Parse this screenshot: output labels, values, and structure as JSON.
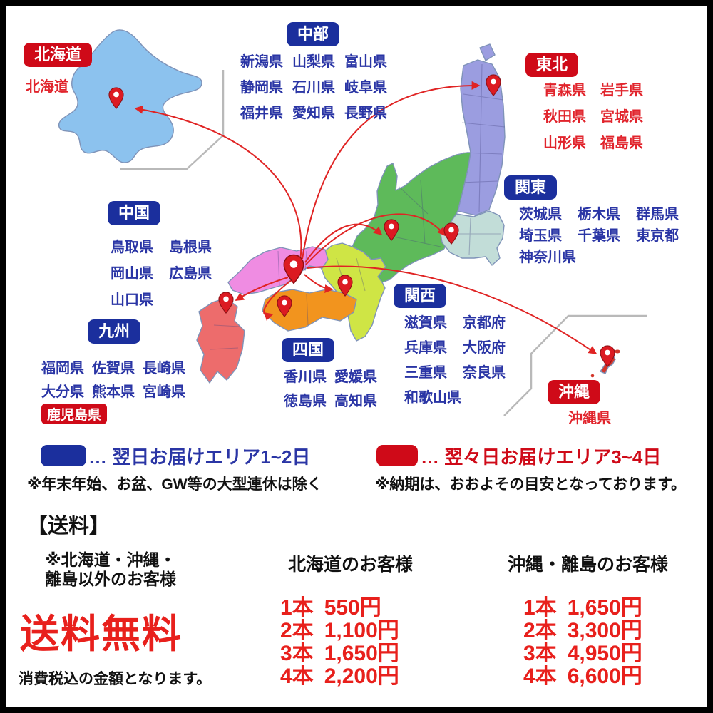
{
  "colors": {
    "frame": "#000000",
    "ink": "#111111",
    "badge-blue": "#1b2f9d",
    "badge-red": "#cf0a18",
    "text-blue": "#2a35a5",
    "text-red": "#e1242c",
    "price-red": "#e8201c",
    "arrow-red": "#e02424",
    "pin-red": "#dc1a22",
    "inset-line": "#b9b9b9",
    "map": {
      "hokkaido": "#8cc2ee",
      "tohoku": "#9b9de0",
      "chubu": "#5eba5a",
      "kanto": "#c2ddd8",
      "kansai": "#cfe545",
      "chugoku": "#ef8ce2",
      "shikoku": "#f2941e",
      "kyushu": "#ed6c6c",
      "okinawa": "#d3362a",
      "stroke": "#7f93b8"
    }
  },
  "regions": {
    "hokkaido": {
      "label": "北海道",
      "prefs": [
        [
          "北海道"
        ]
      ]
    },
    "tohoku": {
      "label": "東北",
      "prefs": [
        [
          "青森県",
          "岩手県"
        ],
        [
          "秋田県",
          "宮城県"
        ],
        [
          "山形県",
          "福島県"
        ]
      ]
    },
    "chubu": {
      "label": "中部",
      "prefs": [
        [
          "新潟県",
          "山梨県",
          "富山県"
        ],
        [
          "静岡県",
          "石川県",
          "岐阜県"
        ],
        [
          "福井県",
          "愛知県",
          "長野県"
        ]
      ]
    },
    "kanto": {
      "label": "関東",
      "prefs": [
        [
          "茨城県",
          "栃木県",
          "群馬県"
        ],
        [
          "埼玉県",
          "千葉県",
          "東京都"
        ],
        [
          "神奈川県"
        ]
      ]
    },
    "chugoku": {
      "label": "中国",
      "prefs": [
        [
          "鳥取県",
          "島根県"
        ],
        [
          "岡山県",
          "広島県"
        ],
        [
          "山口県"
        ]
      ]
    },
    "kansai": {
      "label": "関西",
      "prefs": [
        [
          "滋賀県",
          "京都府"
        ],
        [
          "兵庫県",
          "大阪府"
        ],
        [
          "三重県",
          "奈良県"
        ],
        [
          "和歌山県"
        ]
      ]
    },
    "kyushu": {
      "label": "九州",
      "prefs": [
        [
          "福岡県",
          "佐賀県",
          "長崎県"
        ],
        [
          "大分県",
          "熊本県",
          "宮崎県"
        ],
        [
          {
            "text": "鹿児島県",
            "badge": true
          }
        ]
      ]
    },
    "shikoku": {
      "label": "四国",
      "prefs": [
        [
          "香川県",
          "愛媛県"
        ],
        [
          "徳島県",
          "高知県"
        ]
      ]
    },
    "okinawa": {
      "label": "沖縄",
      "prefs": [
        [
          "沖縄県"
        ]
      ]
    }
  },
  "legend": {
    "blue": {
      "label": "… 翌日お届けエリア1~2日",
      "note": "※年末年始、お盆、GW等の大型連休は除く"
    },
    "red": {
      "label": "… 翌々日お届けエリア3~4日",
      "note": "※納期は、おおよその目安となっております。"
    }
  },
  "shipping": {
    "title": "【送料】",
    "free": {
      "note_line1": "※北海道・沖縄・",
      "note_line2": "離島以外のお客様",
      "big": "送料無料",
      "tax_note": "消費税込の金額となります。"
    },
    "hokkaido": {
      "header": "北海道のお客様",
      "rows": [
        [
          "1本",
          "550円"
        ],
        [
          "2本",
          "1,100円"
        ],
        [
          "3本",
          "1,650円"
        ],
        [
          "4本",
          "2,200円"
        ]
      ]
    },
    "okinawa": {
      "header": "沖縄・離島のお客様",
      "rows": [
        [
          "1本",
          "1,650円"
        ],
        [
          "2本",
          "3,300円"
        ],
        [
          "3本",
          "4,950円"
        ],
        [
          "4本",
          "6,600円"
        ]
      ]
    }
  }
}
